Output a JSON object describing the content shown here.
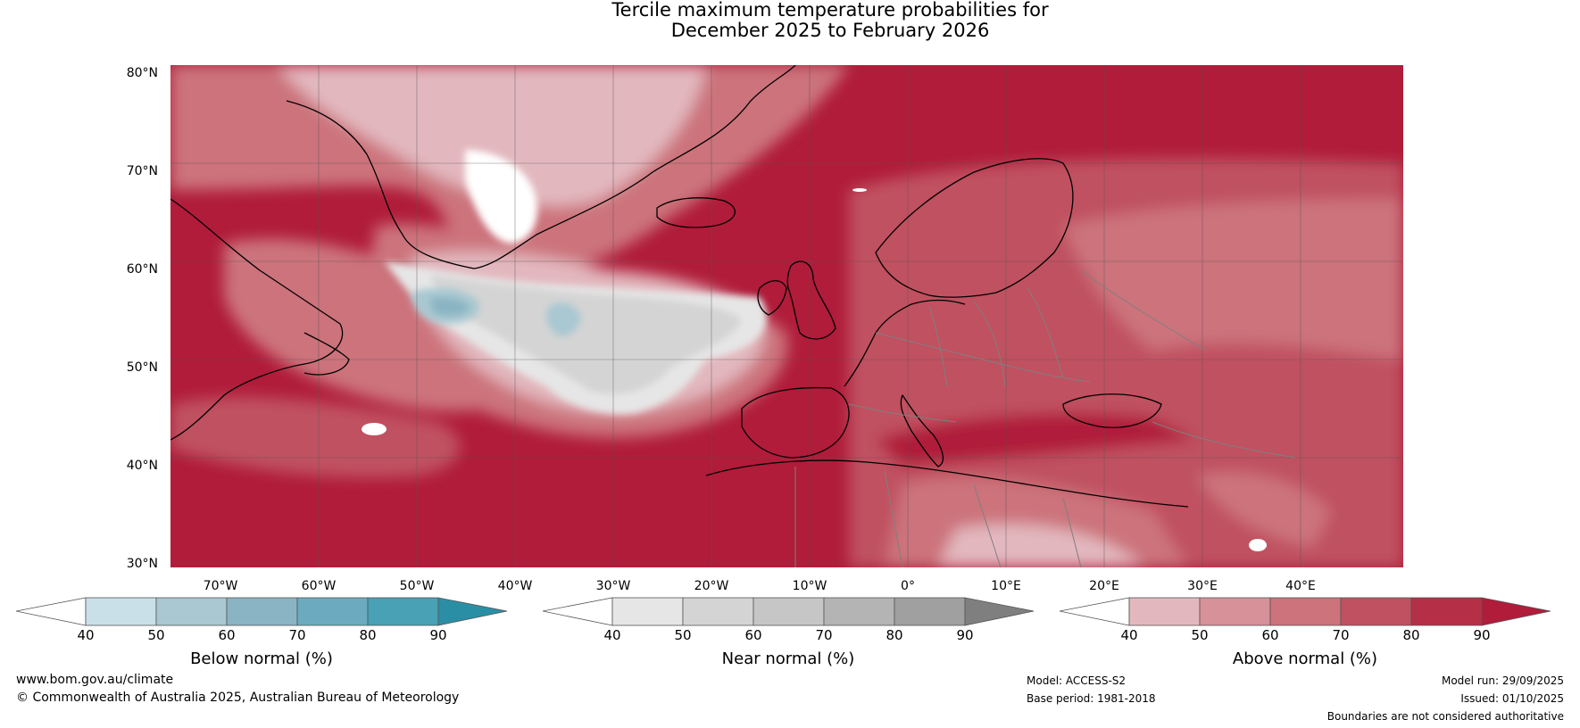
{
  "title": {
    "line1": "Tercile maximum temperature probabilities for",
    "line2": "December 2025 to February 2026"
  },
  "lat_labels": [
    "80°N",
    "70°N",
    "60°N",
    "50°N",
    "40°N",
    "30°N"
  ],
  "lon_labels": [
    "70°W",
    "60°W",
    "50°W",
    "40°W",
    "30°W",
    "20°W",
    "10°W",
    "0°",
    "10°E",
    "20°E",
    "30°E",
    "40°E"
  ],
  "colorbars": [
    {
      "name": "below",
      "label": "Below normal (%)",
      "ticks": [
        "40",
        "50",
        "60",
        "70",
        "80",
        "90"
      ],
      "colors": [
        "#ffffff",
        "#c9e0e8",
        "#a9c8d1",
        "#8ab4c3",
        "#6cabbf",
        "#48a1b5",
        "#2a8fa5"
      ]
    },
    {
      "name": "near",
      "label": "Near normal (%)",
      "ticks": [
        "40",
        "50",
        "60",
        "70",
        "80",
        "90"
      ],
      "colors": [
        "#ffffff",
        "#e6e6e6",
        "#d4d4d4",
        "#c6c6c6",
        "#b4b4b4",
        "#a0a0a0",
        "#7f7f7f"
      ]
    },
    {
      "name": "above",
      "label": "Above normal (%)",
      "ticks": [
        "40",
        "50",
        "60",
        "70",
        "80",
        "90"
      ],
      "colors": [
        "#ffffff",
        "#e2b8be",
        "#d69199",
        "#cc737c",
        "#c05160",
        "#b52f46",
        "#b01c3a"
      ]
    }
  ],
  "colors": {
    "above_90": "#b01c3a",
    "above_80": "#b52f46",
    "above_70": "#c05160",
    "above_60": "#cc737c",
    "above_50": "#e2b8be",
    "near": "#d4d4d4",
    "below": "#8ab4c3",
    "coast": "#000000",
    "border": "#7f7f7f"
  },
  "footer": {
    "website": "www.bom.gov.au/climate",
    "copyright": "© Commonwealth of Australia 2025, Australian Bureau of Meteorology",
    "model": "Model: ACCESS-S2",
    "base_period": "Base period: 1981-2018",
    "model_run": "Model run: 29/09/2025",
    "issued": "Issued: 01/10/2025",
    "disclaimer": "Boundaries are not considered authoritative"
  }
}
